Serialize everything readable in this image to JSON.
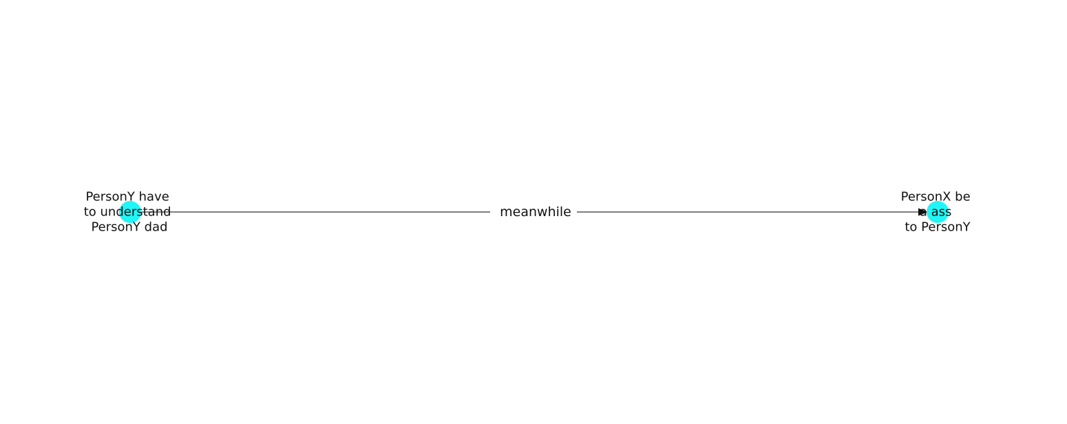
{
  "colors": {
    "node_fill": "#22F5F5",
    "edge_stroke": "#333333",
    "text": "#111111",
    "background": "#FFFFFF"
  },
  "nodes": [
    {
      "id": "source",
      "lines": [
        "PersonY have",
        "to understand",
        "PersonY dad"
      ]
    },
    {
      "id": "target",
      "lines": [
        "PersonX be",
        "a ass",
        "to PersonY"
      ]
    }
  ],
  "edges": [
    {
      "from": "source",
      "to": "target",
      "label": "meanwhile",
      "directed": true
    }
  ]
}
